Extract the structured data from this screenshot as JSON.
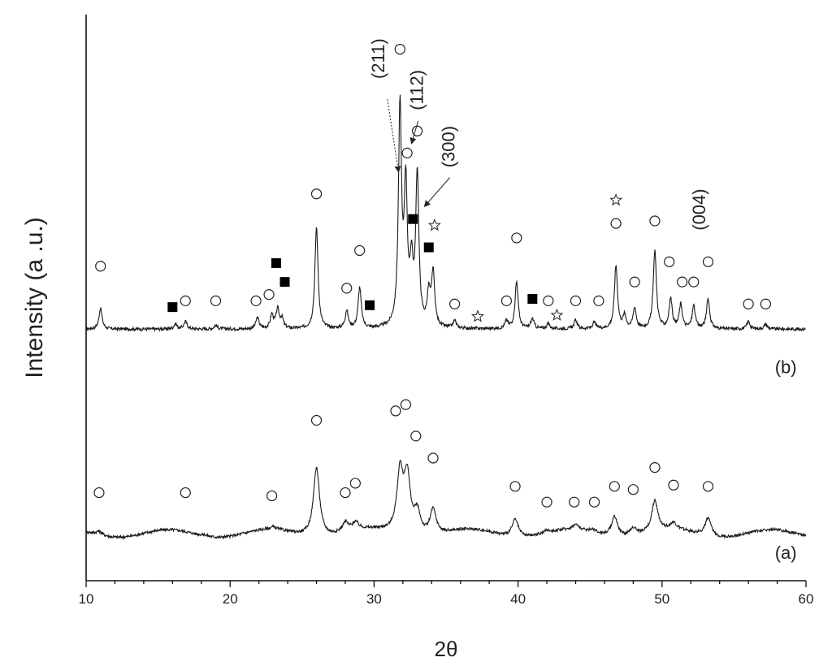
{
  "chart_data": {
    "type": "line",
    "xlabel": "2θ",
    "ylabel": "Intensity (a .u.)",
    "xlim": [
      10,
      60
    ],
    "x_ticks": [
      "10",
      "20",
      "30",
      "40",
      "50",
      "60"
    ],
    "grid": false,
    "colors": {
      "line": "#1a1a1a",
      "axis": "#111111",
      "marker": "#222222"
    },
    "series": [
      {
        "name": "(b)",
        "baseline": 4.0,
        "peaks": [
          {
            "x": 11.0,
            "h": 0.33
          },
          {
            "x": 16.2,
            "h": 0.08
          },
          {
            "x": 16.9,
            "h": 0.12
          },
          {
            "x": 19.0,
            "h": 0.06
          },
          {
            "x": 21.9,
            "h": 0.18
          },
          {
            "x": 22.9,
            "h": 0.22
          },
          {
            "x": 23.3,
            "h": 0.3
          },
          {
            "x": 23.6,
            "h": 0.15
          },
          {
            "x": 26.0,
            "h": 1.62
          },
          {
            "x": 28.1,
            "h": 0.28
          },
          {
            "x": 29.0,
            "h": 0.65
          },
          {
            "x": 31.8,
            "h": 3.45
          },
          {
            "x": 32.2,
            "h": 2.15
          },
          {
            "x": 32.6,
            "h": 0.9
          },
          {
            "x": 33.0,
            "h": 2.4
          },
          {
            "x": 33.8,
            "h": 0.5
          },
          {
            "x": 34.1,
            "h": 0.85
          },
          {
            "x": 35.6,
            "h": 0.12
          },
          {
            "x": 39.2,
            "h": 0.12
          },
          {
            "x": 39.9,
            "h": 0.75
          },
          {
            "x": 41.0,
            "h": 0.16
          },
          {
            "x": 42.1,
            "h": 0.08
          },
          {
            "x": 44.0,
            "h": 0.14
          },
          {
            "x": 45.3,
            "h": 0.1
          },
          {
            "x": 46.8,
            "h": 1.0
          },
          {
            "x": 47.4,
            "h": 0.2
          },
          {
            "x": 48.1,
            "h": 0.33
          },
          {
            "x": 49.5,
            "h": 1.25
          },
          {
            "x": 50.6,
            "h": 0.47
          },
          {
            "x": 51.3,
            "h": 0.38
          },
          {
            "x": 52.2,
            "h": 0.36
          },
          {
            "x": 53.2,
            "h": 0.48
          },
          {
            "x": 56.0,
            "h": 0.12
          },
          {
            "x": 57.2,
            "h": 0.08
          }
        ]
      },
      {
        "name": "(a)",
        "baseline": 0.75,
        "peaks": [
          {
            "x": 10.9,
            "h": 0.06
          },
          {
            "x": 18.2,
            "h": 0.02
          },
          {
            "x": 23.0,
            "h": 0.04
          },
          {
            "x": 26.0,
            "h": 1.1
          },
          {
            "x": 28.0,
            "h": 0.15
          },
          {
            "x": 28.7,
            "h": 0.12
          },
          {
            "x": 31.8,
            "h": 0.95
          },
          {
            "x": 32.3,
            "h": 0.9
          },
          {
            "x": 33.0,
            "h": 0.35
          },
          {
            "x": 34.1,
            "h": 0.4
          },
          {
            "x": 39.8,
            "h": 0.28
          },
          {
            "x": 42.0,
            "h": 0.04
          },
          {
            "x": 44.0,
            "h": 0.08
          },
          {
            "x": 45.2,
            "h": 0.05
          },
          {
            "x": 46.7,
            "h": 0.32
          },
          {
            "x": 48.0,
            "h": 0.12
          },
          {
            "x": 49.5,
            "h": 0.48
          },
          {
            "x": 50.8,
            "h": 0.1
          },
          {
            "x": 53.2,
            "h": 0.28
          }
        ]
      }
    ],
    "markers": {
      "b_circles": [
        {
          "x": 11.0,
          "y": 5.0
        },
        {
          "x": 16.9,
          "y": 4.45
        },
        {
          "x": 19.0,
          "y": 4.45
        },
        {
          "x": 21.8,
          "y": 4.45
        },
        {
          "x": 22.7,
          "y": 4.55
        },
        {
          "x": 26.0,
          "y": 6.15
        },
        {
          "x": 28.1,
          "y": 4.65
        },
        {
          "x": 29.0,
          "y": 5.25
        },
        {
          "x": 31.8,
          "y": 8.45
        },
        {
          "x": 32.3,
          "y": 6.8
        },
        {
          "x": 33.0,
          "y": 7.15
        },
        {
          "x": 35.6,
          "y": 4.4
        },
        {
          "x": 39.2,
          "y": 4.45
        },
        {
          "x": 39.9,
          "y": 5.45
        },
        {
          "x": 42.1,
          "y": 4.45
        },
        {
          "x": 44.0,
          "y": 4.45
        },
        {
          "x": 45.6,
          "y": 4.45
        },
        {
          "x": 46.8,
          "y": 5.68
        },
        {
          "x": 48.1,
          "y": 4.75
        },
        {
          "x": 49.5,
          "y": 5.72
        },
        {
          "x": 50.5,
          "y": 5.07
        },
        {
          "x": 51.4,
          "y": 4.75
        },
        {
          "x": 52.2,
          "y": 4.75
        },
        {
          "x": 53.2,
          "y": 5.07
        },
        {
          "x": 56.0,
          "y": 4.4
        },
        {
          "x": 57.2,
          "y": 4.4
        }
      ],
      "b_squares": [
        {
          "x": 16.0,
          "y": 4.35
        },
        {
          "x": 23.2,
          "y": 5.05
        },
        {
          "x": 23.8,
          "y": 4.75
        },
        {
          "x": 29.7,
          "y": 4.38
        },
        {
          "x": 32.7,
          "y": 5.75
        },
        {
          "x": 33.8,
          "y": 5.3
        },
        {
          "x": 41.0,
          "y": 4.48
        }
      ],
      "b_stars": [
        {
          "x": 34.2,
          "y": 5.65
        },
        {
          "x": 37.2,
          "y": 4.2
        },
        {
          "x": 42.7,
          "y": 4.22
        },
        {
          "x": 46.8,
          "y": 6.05
        }
      ],
      "a_circles": [
        {
          "x": 10.9,
          "y": 1.4
        },
        {
          "x": 16.9,
          "y": 1.4
        },
        {
          "x": 22.9,
          "y": 1.35
        },
        {
          "x": 26.0,
          "y": 2.55
        },
        {
          "x": 28.0,
          "y": 1.4
        },
        {
          "x": 28.7,
          "y": 1.55
        },
        {
          "x": 31.5,
          "y": 2.7
        },
        {
          "x": 32.2,
          "y": 2.8
        },
        {
          "x": 32.9,
          "y": 2.3
        },
        {
          "x": 34.1,
          "y": 1.95
        },
        {
          "x": 39.8,
          "y": 1.5
        },
        {
          "x": 42.0,
          "y": 1.25
        },
        {
          "x": 43.9,
          "y": 1.25
        },
        {
          "x": 45.3,
          "y": 1.25
        },
        {
          "x": 46.7,
          "y": 1.5
        },
        {
          "x": 48.0,
          "y": 1.45
        },
        {
          "x": 49.5,
          "y": 1.8
        },
        {
          "x": 50.8,
          "y": 1.52
        },
        {
          "x": 53.2,
          "y": 1.5
        }
      ]
    },
    "annotations": {
      "peak_labels": [
        {
          "text": "(211)",
          "x": 30.7,
          "y": 8.3,
          "to_x": 31.7,
          "to_y": 6.5
        },
        {
          "text": "(112)",
          "x": 33.4,
          "y": 7.8,
          "to_x": 32.6,
          "to_y": 6.95
        },
        {
          "text": "(300)",
          "x": 35.6,
          "y": 6.9,
          "to_x": 33.5,
          "to_y": 5.95
        },
        {
          "text": "(004)",
          "x": 53.0,
          "y": 5.9
        }
      ],
      "series_labels": [
        {
          "text": "(b)",
          "x": 58.6,
          "y": 3.3
        },
        {
          "text": "(a)",
          "x": 58.6,
          "y": 0.35
        }
      ]
    }
  }
}
